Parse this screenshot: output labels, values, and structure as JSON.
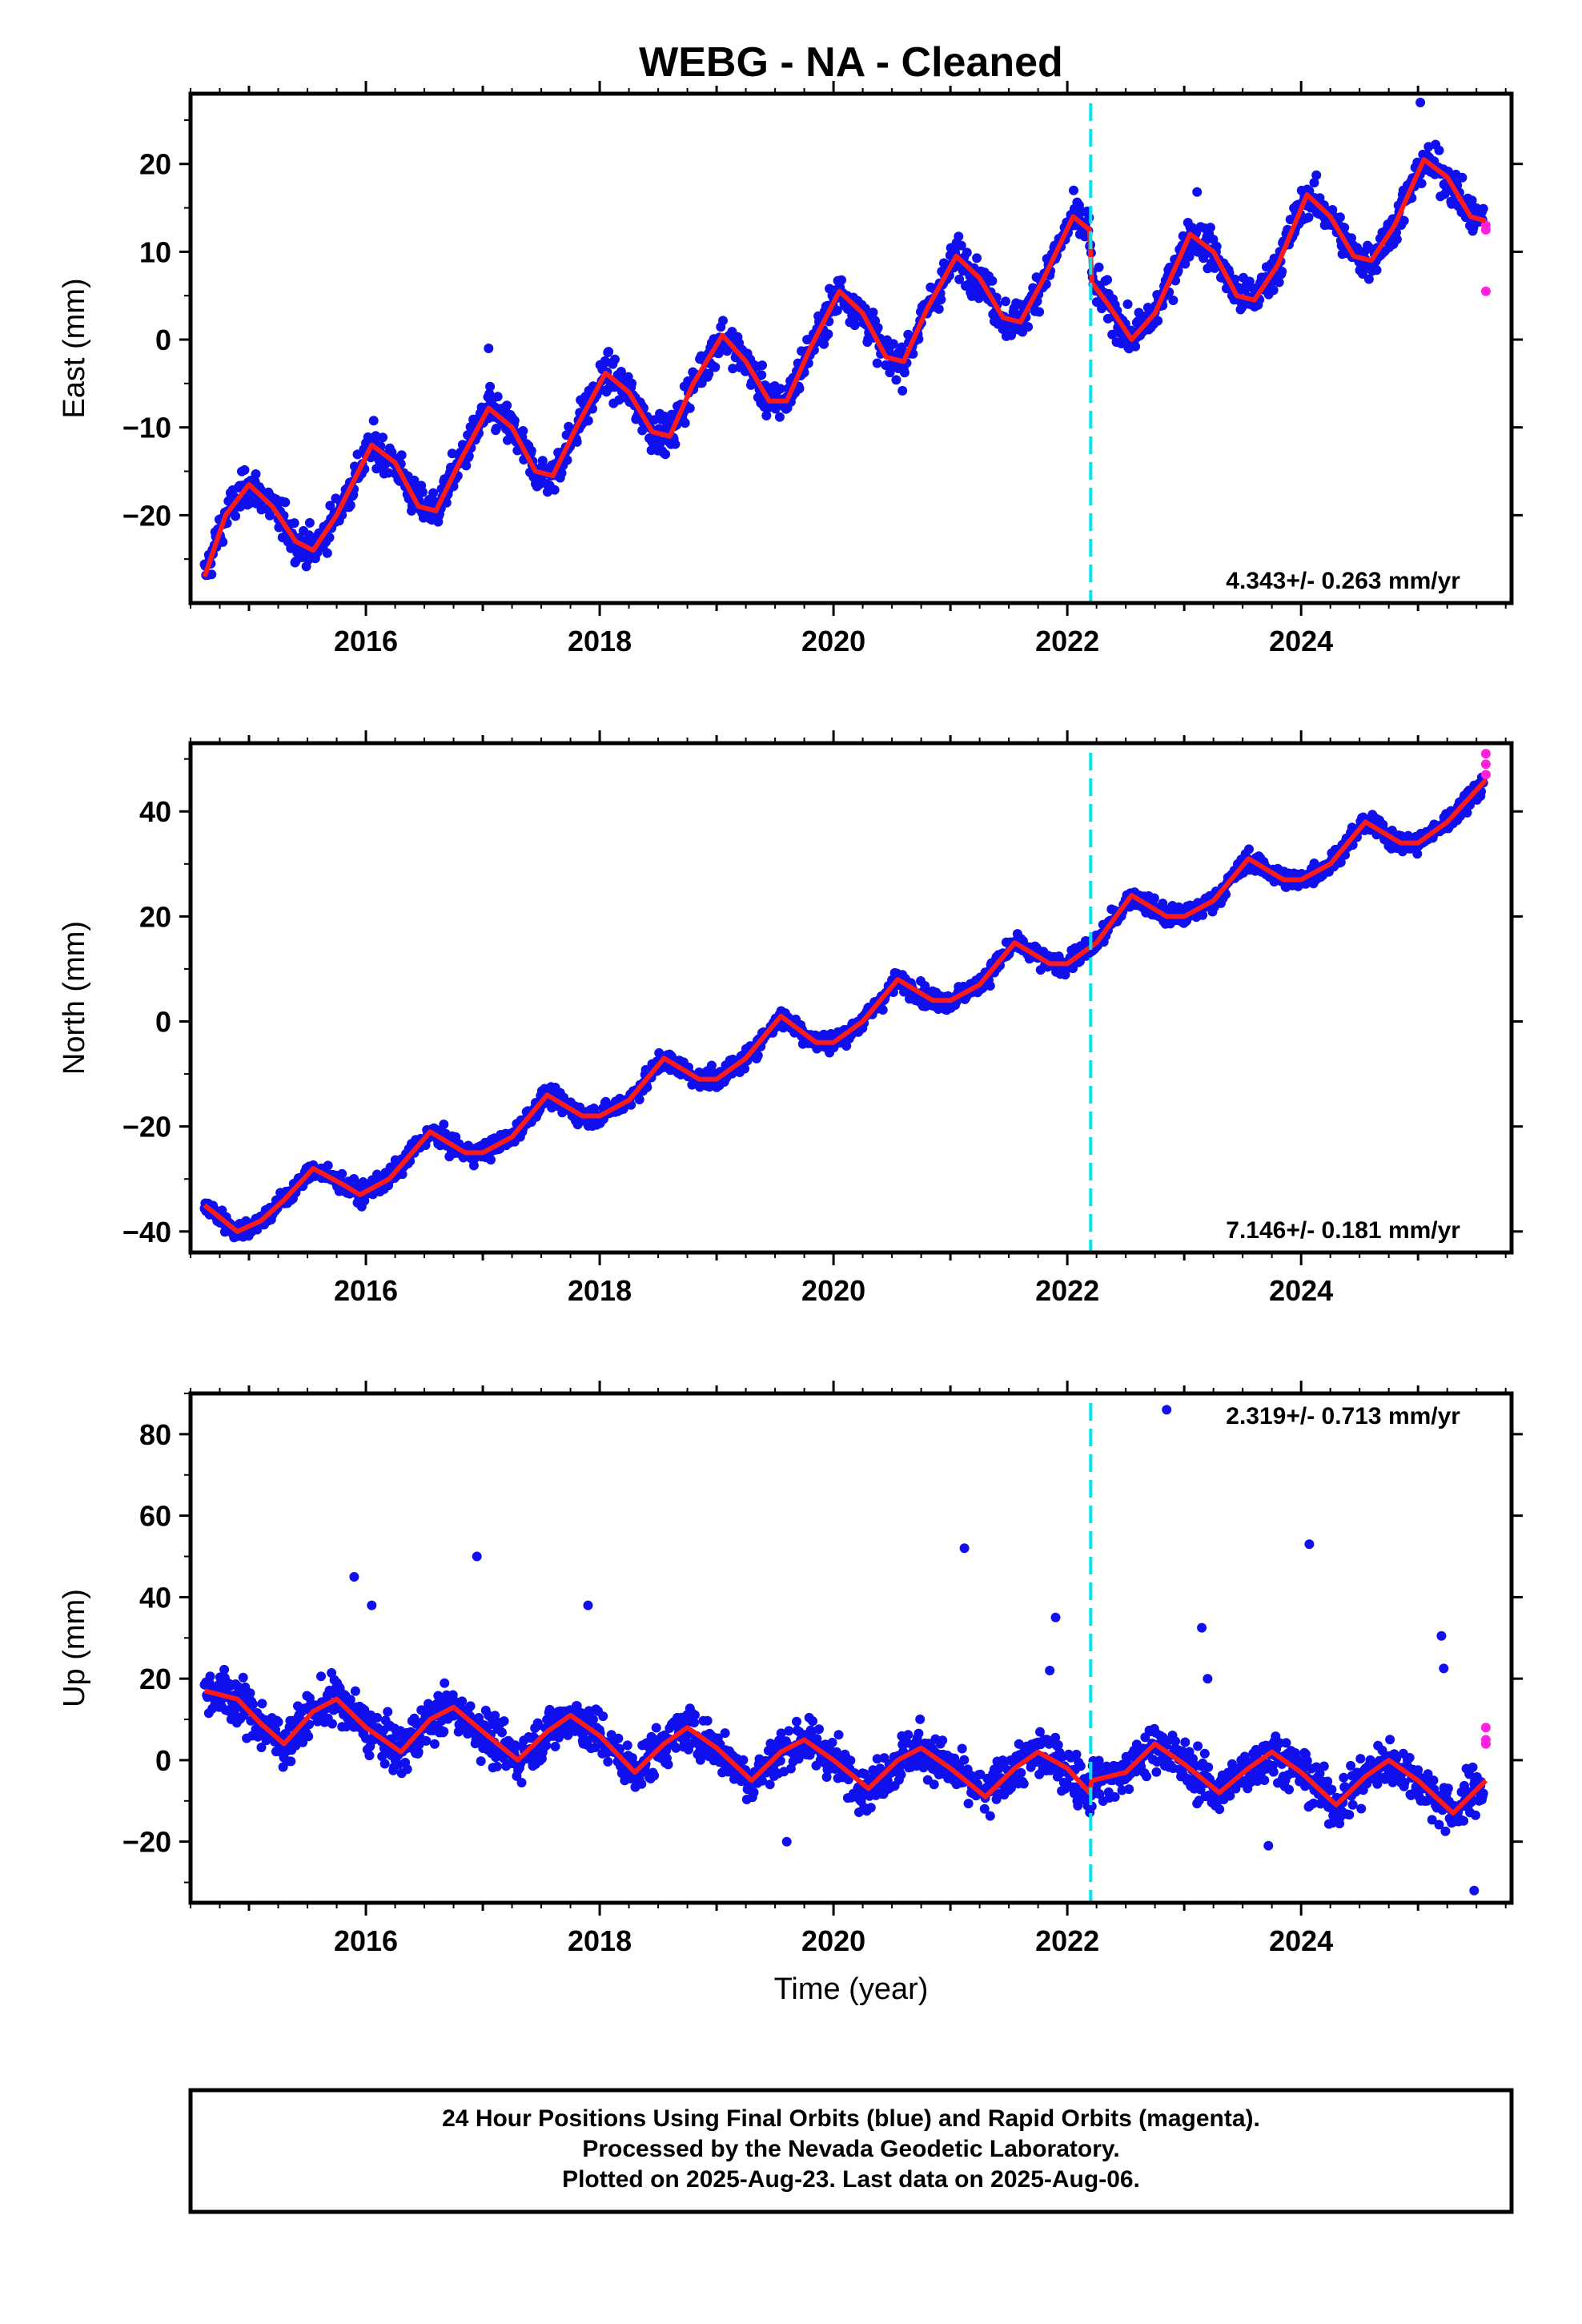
{
  "chart_data": {
    "title": "WEBG  - NA - Cleaned",
    "type": "scatter",
    "x_range": [
      2014.5,
      2025.8
    ],
    "x_ticks": [
      2016,
      2018,
      2020,
      2022,
      2024
    ],
    "xlabel": "Time (year)",
    "event_line_year": 2022.2,
    "colors": {
      "final": "#1010ee",
      "rapid": "#ff22dd",
      "model": "#ff1a1a",
      "event": "#00e5ee"
    },
    "panels": [
      {
        "name": "east",
        "ylabel": "East (mm)",
        "ylim": [
          -30,
          28
        ],
        "y_ticks": [
          -20,
          -10,
          0,
          10,
          20
        ],
        "rate_label": "4.343+/- 0.263 mm/yr",
        "model": {
          "x": [
            2014.62,
            2014.8,
            2015.0,
            2015.2,
            2015.4,
            2015.55,
            2015.75,
            2016.05,
            2016.25,
            2016.45,
            2016.6,
            2016.8,
            2017.05,
            2017.25,
            2017.45,
            2017.6,
            2017.8,
            2018.05,
            2018.25,
            2018.45,
            2018.6,
            2018.8,
            2019.05,
            2019.25,
            2019.45,
            2019.6,
            2019.8,
            2020.05,
            2020.25,
            2020.45,
            2020.6,
            2020.8,
            2021.05,
            2021.25,
            2021.45,
            2021.6,
            2021.8,
            2022.05,
            2022.19,
            2022.21,
            2022.35,
            2022.55,
            2022.75,
            2023.05,
            2023.25,
            2023.45,
            2023.6,
            2023.8,
            2024.05,
            2024.25,
            2024.45,
            2024.6,
            2024.8,
            2025.05,
            2025.25,
            2025.45,
            2025.58
          ],
          "y": [
            -27,
            -20,
            -16.5,
            -19,
            -23,
            -24,
            -20,
            -12,
            -14,
            -19,
            -19.5,
            -14,
            -7.8,
            -10,
            -15,
            -15.5,
            -10,
            -3.8,
            -6,
            -10.5,
            -11,
            -5,
            0.5,
            -2.5,
            -7,
            -7,
            -1,
            5.5,
            3,
            -2,
            -2.5,
            3.5,
            9.5,
            7,
            2.5,
            2,
            7,
            14,
            12.5,
            6.5,
            4,
            0,
            3,
            12,
            10,
            5,
            4.5,
            8.5,
            16.5,
            14,
            9.5,
            9,
            13,
            20.5,
            18.5,
            14,
            13.5
          ]
        },
        "rapid_points": [
          [
            2025.58,
            13
          ],
          [
            2025.58,
            12.5
          ],
          [
            2025.58,
            5.5
          ]
        ],
        "outliers": [
          [
            2025.02,
            27
          ],
          [
            2023.11,
            16.8
          ],
          [
            2017.05,
            -1
          ]
        ]
      },
      {
        "name": "north",
        "ylabel": "North (mm)",
        "ylim": [
          -44,
          53
        ],
        "y_ticks": [
          -40,
          -20,
          0,
          20,
          40
        ],
        "rate_label": "7.146+/- 0.181 mm/yr",
        "model": {
          "x": [
            2014.62,
            2014.9,
            2015.1,
            2015.3,
            2015.55,
            2015.8,
            2015.95,
            2016.2,
            2016.55,
            2016.85,
            2017.0,
            2017.25,
            2017.55,
            2017.85,
            2018.0,
            2018.25,
            2018.55,
            2018.85,
            2019.0,
            2019.25,
            2019.55,
            2019.85,
            2020.0,
            2020.25,
            2020.55,
            2020.85,
            2021.0,
            2021.25,
            2021.55,
            2021.85,
            2022.0,
            2022.25,
            2022.55,
            2022.85,
            2023.0,
            2023.25,
            2023.55,
            2023.85,
            2024.0,
            2024.25,
            2024.55,
            2024.85,
            2025.0,
            2025.25,
            2025.58
          ],
          "y": [
            -35,
            -40,
            -38,
            -34,
            -28,
            -31,
            -33,
            -30,
            -21,
            -25,
            -25,
            -22,
            -14,
            -18,
            -18,
            -15,
            -7,
            -11,
            -11,
            -7,
            1,
            -4,
            -4,
            0,
            8,
            4,
            4,
            7,
            15,
            11,
            11,
            15,
            24,
            20,
            20,
            23,
            31,
            27,
            27,
            30,
            38,
            34,
            34,
            38,
            46
          ]
        },
        "rapid_points": [
          [
            2025.58,
            47
          ],
          [
            2025.58,
            49
          ],
          [
            2025.58,
            51
          ]
        ],
        "outliers": []
      },
      {
        "name": "up",
        "ylabel": "Up (mm)",
        "ylim": [
          -35,
          90
        ],
        "y_ticks": [
          -20,
          0,
          20,
          40,
          60,
          80
        ],
        "rate_label": "2.319+/- 0.713 mm/yr",
        "model": {
          "x": [
            2014.62,
            2014.9,
            2015.1,
            2015.3,
            2015.55,
            2015.75,
            2016.0,
            2016.3,
            2016.55,
            2016.75,
            2017.0,
            2017.3,
            2017.55,
            2017.75,
            2018.0,
            2018.3,
            2018.55,
            2018.75,
            2019.0,
            2019.3,
            2019.55,
            2019.75,
            2020.0,
            2020.3,
            2020.55,
            2020.75,
            2021.0,
            2021.3,
            2021.55,
            2021.75,
            2022.0,
            2022.19,
            2022.21,
            2022.5,
            2022.75,
            2023.0,
            2023.3,
            2023.55,
            2023.75,
            2024.0,
            2024.3,
            2024.55,
            2024.75,
            2025.0,
            2025.3,
            2025.58
          ],
          "y": [
            17,
            15,
            9,
            4,
            12,
            15,
            8,
            2,
            10,
            13,
            7,
            0,
            7,
            11,
            6,
            -3,
            4,
            8,
            3,
            -5,
            2,
            5,
            0,
            -7,
            0,
            3,
            -2,
            -9,
            -2,
            2,
            -2,
            -8,
            -5,
            -3,
            4,
            -1,
            -8,
            -2,
            2,
            -3,
            -11,
            -4,
            0,
            -5,
            -13,
            -5
          ]
        },
        "rapid_points": [
          [
            2025.58,
            8
          ],
          [
            2025.58,
            5
          ],
          [
            2025.58,
            4
          ]
        ],
        "outliers": [
          [
            2016.95,
            50
          ],
          [
            2021.12,
            52
          ],
          [
            2024.07,
            53
          ],
          [
            2017.9,
            38
          ],
          [
            2025.2,
            30.5
          ],
          [
            2025.22,
            22.5
          ],
          [
            2023.15,
            32.5
          ],
          [
            2023.2,
            20
          ],
          [
            2022.85,
            86
          ],
          [
            2021.9,
            35
          ],
          [
            2021.85,
            22
          ],
          [
            2015.9,
            45
          ],
          [
            2016.05,
            38
          ],
          [
            2025.48,
            -32
          ],
          [
            2023.72,
            -21
          ],
          [
            2019.6,
            -20
          ]
        ]
      }
    ],
    "footer": [
      "24 Hour Positions Using Final Orbits (blue) and Rapid Orbits (magenta).",
      "Processed by the Nevada Geodetic Laboratory.",
      "Plotted on 2025-Aug-23. Last data on 2025-Aug-06."
    ]
  }
}
